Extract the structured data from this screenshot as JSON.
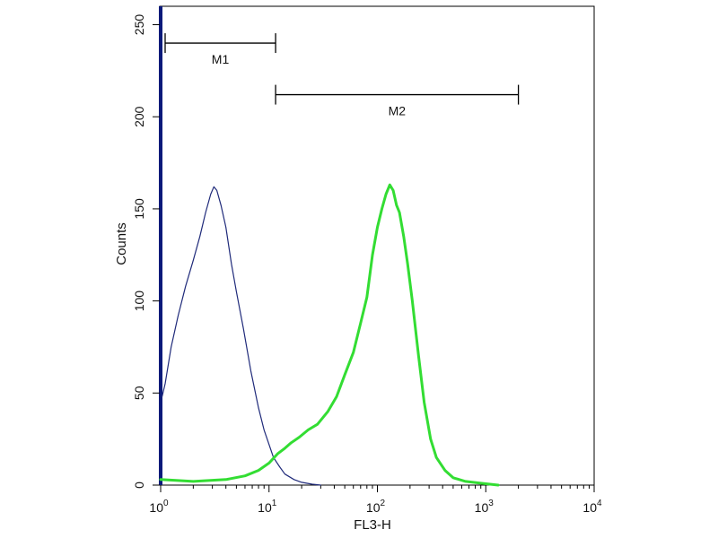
{
  "chart_data": {
    "type": "line",
    "xlabel": "FL3-H",
    "ylabel": "Counts",
    "x_scale": "log10",
    "xlim": [
      1,
      10000
    ],
    "ylim": [
      0,
      260
    ],
    "x_ticks": [
      {
        "base": "10",
        "exp": "0",
        "value": 1
      },
      {
        "base": "10",
        "exp": "1",
        "value": 10
      },
      {
        "base": "10",
        "exp": "2",
        "value": 100
      },
      {
        "base": "10",
        "exp": "3",
        "value": 1000
      },
      {
        "base": "10",
        "exp": "4",
        "value": 10000
      }
    ],
    "y_ticks": [
      {
        "label": "0",
        "value": 0
      },
      {
        "label": "50",
        "value": 50
      },
      {
        "label": "100",
        "value": 100
      },
      {
        "label": "150",
        "value": 150
      },
      {
        "label": "200",
        "value": 200
      },
      {
        "label": "250",
        "value": 250
      }
    ],
    "markers": [
      {
        "label": "M1",
        "x_start": 1.1,
        "x_end": 11.5,
        "y": 240
      },
      {
        "label": "M2",
        "x_start": 11.5,
        "x_end": 2000,
        "y": 212
      }
    ],
    "series": [
      {
        "color": "#1f2a7a",
        "stroke_width": 1.2,
        "points": [
          [
            1.03,
            48
          ],
          [
            1.1,
            55
          ],
          [
            1.25,
            75
          ],
          [
            1.45,
            92
          ],
          [
            1.7,
            108
          ],
          [
            2.0,
            122
          ],
          [
            2.3,
            135
          ],
          [
            2.6,
            148
          ],
          [
            2.9,
            158
          ],
          [
            3.1,
            162
          ],
          [
            3.3,
            160
          ],
          [
            3.6,
            152
          ],
          [
            4.0,
            140
          ],
          [
            4.5,
            120
          ],
          [
            5.0,
            105
          ],
          [
            5.8,
            85
          ],
          [
            6.8,
            62
          ],
          [
            8.0,
            42
          ],
          [
            9.0,
            30
          ],
          [
            10.0,
            22
          ],
          [
            11.0,
            15
          ],
          [
            12.5,
            10
          ],
          [
            14.0,
            6
          ],
          [
            17.0,
            3
          ],
          [
            20.0,
            1.5
          ],
          [
            25.0,
            0.5
          ],
          [
            30.0,
            0
          ]
        ]
      },
      {
        "color": "#33dd33",
        "stroke_width": 3,
        "points": [
          [
            1.0,
            3
          ],
          [
            2.0,
            2
          ],
          [
            4.0,
            3
          ],
          [
            6.0,
            5
          ],
          [
            8.0,
            8
          ],
          [
            10.0,
            12
          ],
          [
            12.0,
            17
          ],
          [
            14.0,
            20
          ],
          [
            16.0,
            23
          ],
          [
            19.0,
            26
          ],
          [
            23.0,
            30
          ],
          [
            28.0,
            33
          ],
          [
            35.0,
            40
          ],
          [
            42.0,
            48
          ],
          [
            50.0,
            60
          ],
          [
            60.0,
            72
          ],
          [
            70.0,
            88
          ],
          [
            80.0,
            102
          ],
          [
            90.0,
            125
          ],
          [
            100.0,
            140
          ],
          [
            110.0,
            150
          ],
          [
            120.0,
            158
          ],
          [
            130.0,
            163
          ],
          [
            140.0,
            160
          ],
          [
            150.0,
            152
          ],
          [
            160.0,
            148
          ],
          [
            175.0,
            135
          ],
          [
            190.0,
            120
          ],
          [
            210.0,
            100
          ],
          [
            240.0,
            70
          ],
          [
            270.0,
            45
          ],
          [
            310.0,
            25
          ],
          [
            350.0,
            15
          ],
          [
            420.0,
            8
          ],
          [
            500.0,
            4
          ],
          [
            650.0,
            2
          ],
          [
            900.0,
            1
          ],
          [
            1300.0,
            0
          ]
        ]
      }
    ]
  }
}
